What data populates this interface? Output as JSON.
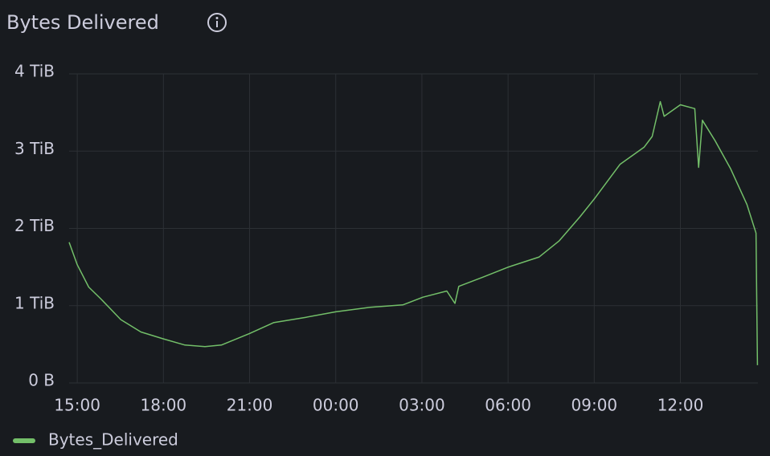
{
  "chart_data": {
    "type": "line",
    "title": "Bytes Delivered",
    "x": [
      "14:43",
      "15:00",
      "15:24",
      "15:49",
      "16:31",
      "17:13",
      "18:00",
      "18:45",
      "19:27",
      "20:01",
      "21:00",
      "21:50",
      "22:58",
      "00:00",
      "01:12",
      "02:20",
      "03:02",
      "03:52",
      "04:09",
      "04:17",
      "05:08",
      "06:01",
      "07:05",
      "07:47",
      "08:30",
      "09:00",
      "09:54",
      "10:44",
      "11:01",
      "11:18",
      "11:26",
      "12:00",
      "12:30",
      "12:38",
      "12:46",
      "13:12",
      "13:45",
      "14:19",
      "14:38",
      "14:41"
    ],
    "series": [
      {
        "name": "Bytes_Delivered",
        "color": "#73bf69",
        "values": [
          1.82,
          1.53,
          1.24,
          1.09,
          0.82,
          0.66,
          0.57,
          0.49,
          0.47,
          0.49,
          0.64,
          0.78,
          0.85,
          0.92,
          0.98,
          1.01,
          1.11,
          1.19,
          1.03,
          1.25,
          1.37,
          1.5,
          1.63,
          1.84,
          2.15,
          2.38,
          2.83,
          3.05,
          3.19,
          3.64,
          3.45,
          3.6,
          3.55,
          2.79,
          3.4,
          3.14,
          2.77,
          2.31,
          1.94,
          0.23
        ]
      }
    ],
    "xlim": [
      "14:43",
      "14:42"
    ],
    "xticks": [
      "15:00",
      "18:00",
      "21:00",
      "00:00",
      "03:00",
      "06:00",
      "09:00",
      "12:00"
    ],
    "ylim": [
      0,
      4
    ],
    "yticks": [
      {
        "value": 0,
        "label": "0 B"
      },
      {
        "value": 1,
        "label": "1 TiB"
      },
      {
        "value": 2,
        "label": "2 TiB"
      },
      {
        "value": 3,
        "label": "3 TiB"
      },
      {
        "value": 4,
        "label": "4 TiB"
      }
    ],
    "grid": true
  }
}
